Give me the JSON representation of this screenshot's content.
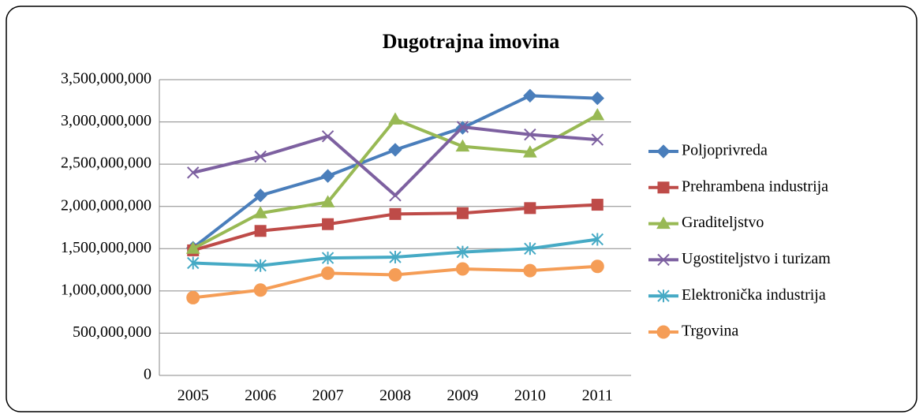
{
  "chart_data": {
    "type": "line",
    "title": "Dugotrajna imovina",
    "categories": [
      "2005",
      "2006",
      "2007",
      "2008",
      "2009",
      "2010",
      "2011"
    ],
    "ylim": [
      0,
      3500000000
    ],
    "yticks": [
      0,
      {
        "value": 500000000,
        "label": "500,000,000"
      },
      {
        "value": 1000000000,
        "label": "1,000,000,000"
      },
      {
        "value": 1500000000,
        "label": "1,500,000,000"
      },
      {
        "value": 2000000000,
        "label": "2,000,000,000"
      },
      {
        "value": 2500000000,
        "label": "2,500,000,000"
      },
      {
        "value": 3000000000,
        "label": "3,000,000,000"
      },
      {
        "value": 3500000000,
        "label": "3,500,000,000"
      }
    ],
    "grid": true,
    "legend": "right",
    "series": [
      {
        "name": "Poljoprivreda",
        "color": "#4a7ebb",
        "marker": "diamond",
        "values": [
          1510000000,
          2130000000,
          2360000000,
          2670000000,
          2930000000,
          3310000000,
          3280000000
        ]
      },
      {
        "name": "Prehrambena industrija",
        "color": "#be4b48",
        "marker": "square",
        "values": [
          1480000000,
          1710000000,
          1790000000,
          1910000000,
          1920000000,
          1980000000,
          2020000000
        ]
      },
      {
        "name": "Graditeljstvo",
        "color": "#98b954",
        "marker": "triangle",
        "values": [
          1500000000,
          1920000000,
          2050000000,
          3030000000,
          2710000000,
          2640000000,
          3080000000
        ]
      },
      {
        "name": "Ugostiteljstvo i turizam",
        "color": "#7d60a0",
        "marker": "x",
        "values": [
          2400000000,
          2590000000,
          2830000000,
          2130000000,
          2940000000,
          2850000000,
          2790000000
        ]
      },
      {
        "name": "Elektronička industrija",
        "color": "#46aac5",
        "marker": "star",
        "values": [
          1330000000,
          1300000000,
          1390000000,
          1400000000,
          1460000000,
          1500000000,
          1610000000
        ]
      },
      {
        "name": "Trgovina",
        "color": "#f59d56",
        "marker": "circle",
        "values": [
          920000000,
          1010000000,
          1210000000,
          1190000000,
          1260000000,
          1240000000,
          1290000000
        ]
      }
    ]
  }
}
